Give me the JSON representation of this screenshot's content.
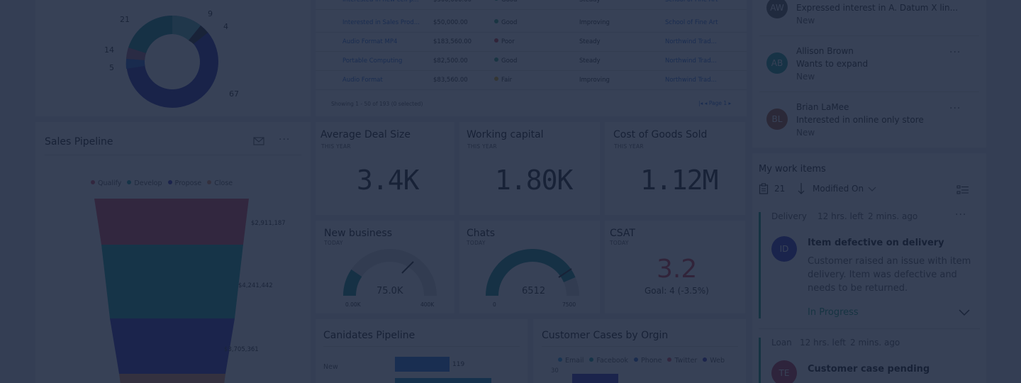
{
  "donut": {
    "labels": [
      "9",
      "4",
      "21",
      "14",
      "5",
      "67"
    ],
    "colors": {
      "teal": "#1a8d86",
      "teal_light": "#5fb5b0",
      "dark": "#2b2b2b",
      "mauve": "#a0627f",
      "blue": "#2f62c8",
      "navy": "#2a2aa0"
    }
  },
  "table": {
    "rows": [
      {
        "topic": "Interested in new cell p...",
        "amount": "$300,000.00",
        "rating": "Good",
        "rating_color": "#2aa876",
        "trend": "Steady",
        "account": "School of Fine Art"
      },
      {
        "topic": "Interested in Sales Prod...",
        "amount": "$50,000.00",
        "rating": "Good",
        "rating_color": "#2aa876",
        "trend": "Improving",
        "account": "School of Fine Art"
      },
      {
        "topic": "Audio Format MP4",
        "amount": "$183,560.00",
        "rating": "Poor",
        "rating_color": "#d13438",
        "trend": "Steady",
        "account": "Northwind Trad..."
      },
      {
        "topic": "Portable Computing",
        "amount": "$82,500.00",
        "rating": "Good",
        "rating_color": "#2aa876",
        "trend": "Steady",
        "account": "Northwind Trad..."
      },
      {
        "topic": "Audio Format",
        "amount": "$83,560.00",
        "rating": "Fair",
        "rating_color": "#e8b00f",
        "trend": "Improving",
        "account": "Northwind Trad..."
      }
    ],
    "footer": "Showing 1 - 50 of 193 (0 selected)",
    "pager": "|◂  ◂  Page 1  ▸"
  },
  "pipeline": {
    "title": "Sales Pipeline",
    "legend": [
      {
        "label": "Qualify",
        "color": "#d94b5c"
      },
      {
        "label": "Develop",
        "color": "#1aa39a"
      },
      {
        "label": "Propose",
        "color": "#3b33b8"
      },
      {
        "label": "Close",
        "color": "#e8915a"
      }
    ],
    "values": [
      "$2,911,187",
      "$4,241,442",
      "$3,705,361"
    ]
  },
  "kpis": [
    {
      "title": "Average Deal Size",
      "sub": "THIS YEAR",
      "value": "3.4K"
    },
    {
      "title": "Working capital",
      "sub": "THIS YEAR",
      "value": "1.80K"
    },
    {
      "title": "Cost of Goods Sold",
      "sub": "THIS YEAR",
      "value": "1.12M"
    }
  ],
  "gauges": [
    {
      "title": "New business",
      "sub": "TODAY",
      "value": "75.0K",
      "min": "0.00K",
      "max": "400K",
      "fraction": 0.19
    },
    {
      "title": "Chats",
      "sub": "TODAY",
      "value": "6512",
      "min": "0",
      "max": "7500",
      "fraction": 0.87
    }
  ],
  "csat": {
    "title": "CSAT",
    "sub": "TODAY",
    "value": "3.2",
    "goal": "Goal: 4 (-3.5%)",
    "value_color": "#d13438"
  },
  "candidates": {
    "title": "Canidates Pipeline",
    "rows": [
      {
        "label": "New",
        "value": "119"
      }
    ]
  },
  "cases": {
    "title": "Customer Cases by Orgin",
    "legend": [
      {
        "label": "Email",
        "color": "#2aa0e0"
      },
      {
        "label": "Facebook",
        "color": "#1aa39a"
      },
      {
        "label": "Phone",
        "color": "#2f62c8"
      },
      {
        "label": "Twitter",
        "color": "#d94b5c"
      },
      {
        "label": "Web",
        "color": "#3b33b8"
      }
    ],
    "y_tick": "30"
  },
  "people": [
    {
      "initials": "AW",
      "name": "",
      "line1": "Expressed interest in A. Datum X lin...",
      "line2": "New",
      "color": "#5d5a58"
    },
    {
      "initials": "AB",
      "name": "Allison Brown",
      "line1": "Wants to expand",
      "line2": "New",
      "color": "#1f9a91"
    },
    {
      "initials": "BL",
      "name": "Brian LaMee",
      "line1": "Interested in online only store",
      "line2": "New",
      "color": "#a8572e"
    }
  ],
  "work_items": {
    "title": "My work items",
    "count": "21",
    "sort": "Modified On",
    "items": [
      {
        "tag": "Delivery",
        "due": "12 hrs. left",
        "ago": "2 mins. ago",
        "initials": "ID",
        "avatar_color": "#3333b6",
        "title": "Item defective on delivery",
        "desc1": "Customer raised an issue with item",
        "desc2": "delivery. Item was defective and",
        "desc3": "needs to be returned.",
        "status": "In Progress"
      },
      {
        "tag": "Loan",
        "due": "12 hrs. left",
        "ago": "2 mins. ago",
        "initials": "TE",
        "avatar_color": "#c0334b",
        "title": "Customer case pending"
      }
    ]
  }
}
